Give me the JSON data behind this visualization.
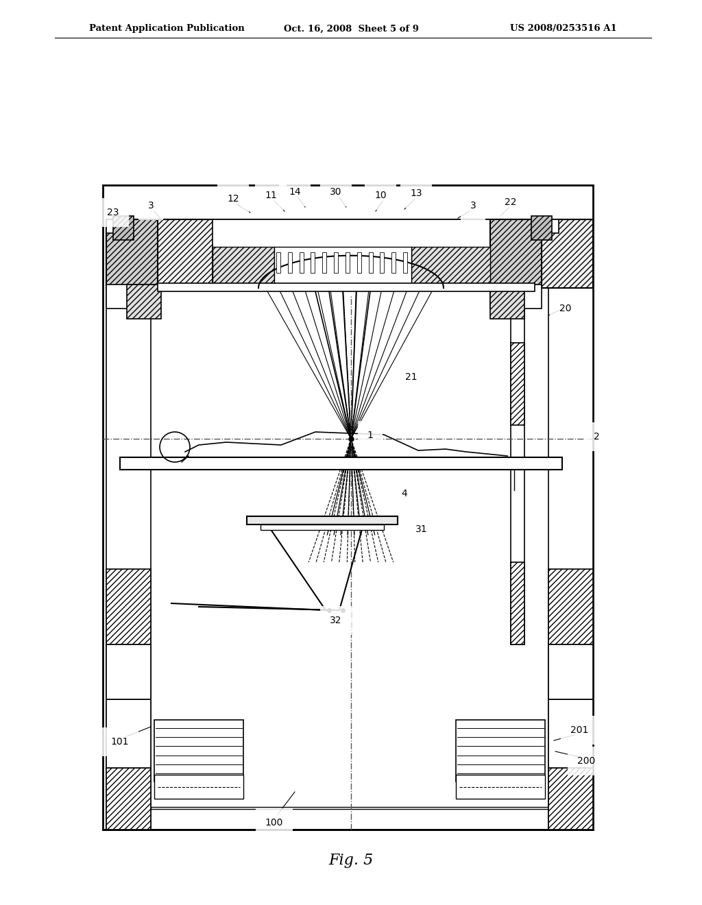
{
  "title_left": "Patent Application Publication",
  "title_mid": "Oct. 16, 2008  Sheet 5 of 9",
  "title_right": "US 2008/0253516 A1",
  "fig_label": "Fig. 5",
  "bg_color": "#ffffff",
  "lc": "#000000"
}
